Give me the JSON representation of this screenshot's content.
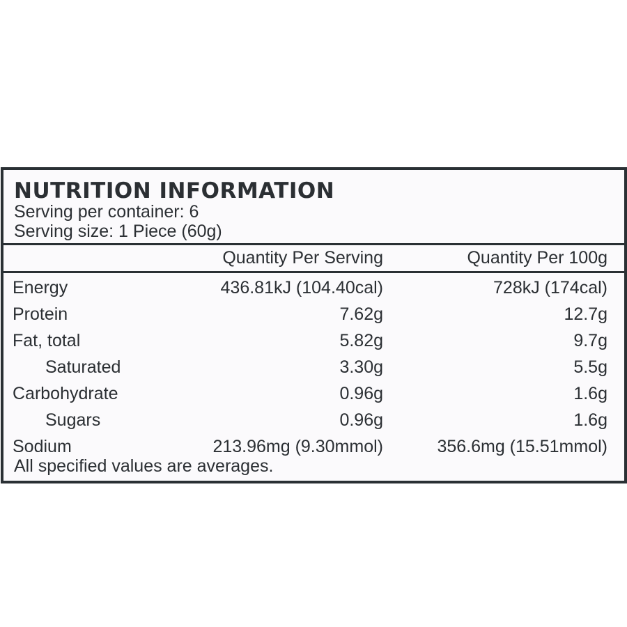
{
  "panel": {
    "title": "NUTRITION INFORMATION",
    "servings_per_container": "Serving per container: 6",
    "serving_size": "Serving size: 1 Piece (60g)",
    "columns": {
      "per_serving": "Quantity Per Serving",
      "per_100g": "Quantity Per 100g"
    },
    "rows": [
      {
        "label": "Energy",
        "per_serving": "436.81kJ (104.40cal)",
        "per_100g": "728kJ (174cal)"
      },
      {
        "label": "Protein",
        "per_serving": "7.62g",
        "per_100g": "12.7g"
      },
      {
        "label": "Fat, total",
        "per_serving": "5.82g",
        "per_100g": "9.7g"
      },
      {
        "label": "Saturated",
        "per_serving": "3.30g",
        "per_100g": "5.5g"
      },
      {
        "label": "Carbohydrate",
        "per_serving": "0.96g",
        "per_100g": "1.6g"
      },
      {
        "label": "Sugars",
        "per_serving": "0.96g",
        "per_100g": "1.6g"
      },
      {
        "label": "Sodium",
        "per_serving": "213.96mg (9.30mmol)",
        "per_100g": "356.6mg (15.51mmol)"
      }
    ],
    "footnote": "All specified values are averages."
  },
  "colors": {
    "border": "#2a3034",
    "text": "#2b2f33",
    "panel_background": "#fbfafc"
  }
}
